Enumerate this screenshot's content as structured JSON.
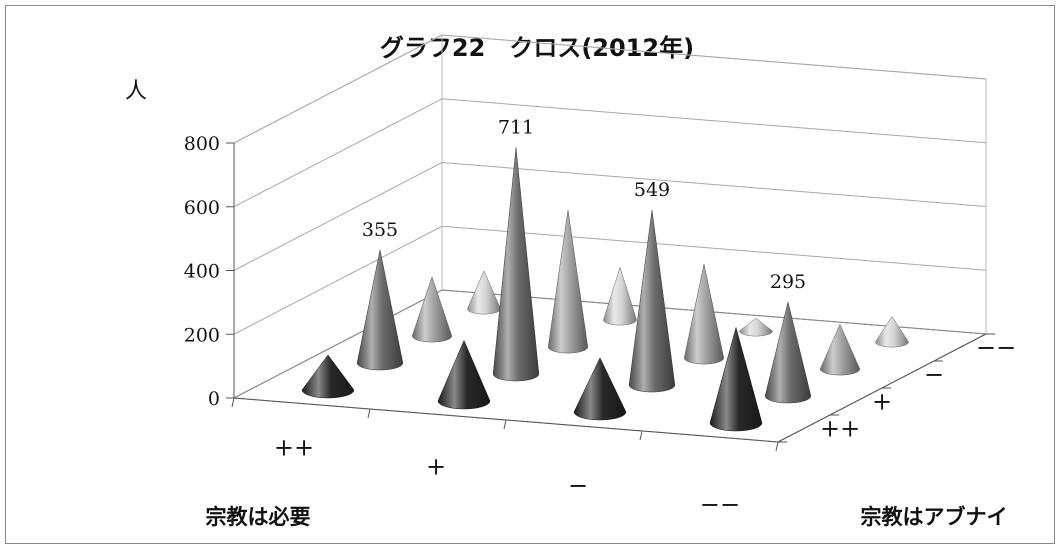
{
  "chart_data": {
    "type": "3d-cone-grid",
    "title": "グラフ22　クロス(2012年)",
    "unit": "人",
    "ylim": [
      0,
      800
    ],
    "yticks": [
      "0",
      "200",
      "400",
      "600",
      "800"
    ],
    "x_axis_name": "宗教は必要",
    "x_categories": [
      "++",
      "+",
      "−",
      "−−"
    ],
    "z_axis_name": "宗教はアブナイ",
    "z_categories": [
      "++",
      "+",
      "−",
      "−−"
    ],
    "grid": true,
    "series": [
      {
        "name": "++",
        "values": [
          110,
          190,
          170,
          300
        ],
        "color": "#2a2a2a"
      },
      {
        "name": "+",
        "values": [
          355,
          711,
          549,
          295
        ],
        "color": "#6c6c6c"
      },
      {
        "name": "−",
        "values": [
          185,
          430,
          295,
          140
        ],
        "color": "#a2a2a2"
      },
      {
        "name": "−−",
        "values": [
          120,
          165,
          40,
          80
        ],
        "color": "#d6d6d6"
      }
    ],
    "data_labels": [
      {
        "series": "+",
        "category": "++",
        "text": "355"
      },
      {
        "series": "+",
        "category": "+",
        "text": "711"
      },
      {
        "series": "+",
        "category": "−",
        "text": "549"
      },
      {
        "series": "+",
        "category": "−−",
        "text": "295"
      }
    ]
  }
}
